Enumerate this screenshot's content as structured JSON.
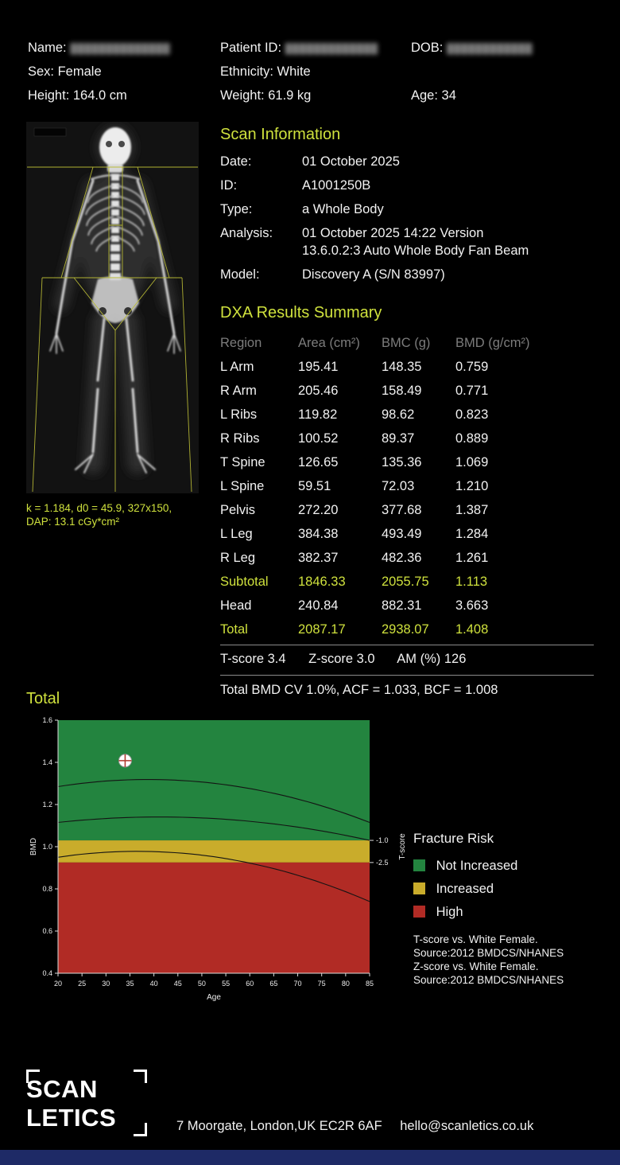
{
  "accent_color": "#cfe13d",
  "patient": {
    "name_label": "Name:",
    "name_value": "██████████████",
    "id_label": "Patient ID:",
    "id_value": "█████████████",
    "dob_label": "DOB:",
    "dob_value": "████████████",
    "sex": "Sex: Female",
    "ethnicity": "Ethnicity: White",
    "height": "Height: 164.0 cm",
    "weight": "Weight: 61.9 kg",
    "age": "Age: 34"
  },
  "scan_image": {
    "caption_line1": "k = 1.184, d0 = 45.9, 327x150,",
    "caption_line2": "DAP: 13.1 cGy*cm²"
  },
  "scan_info": {
    "heading": "Scan Information",
    "rows": [
      {
        "label": "Date:",
        "value": "01 October 2025"
      },
      {
        "label": "ID:",
        "value": "A1001250B"
      },
      {
        "label": "Type:",
        "value": "a Whole Body"
      },
      {
        "label": "Analysis:",
        "value": "01 October 2025 14:22 Version\n13.6.0.2:3 Auto Whole Body Fan Beam"
      },
      {
        "label": "Model:",
        "value": "Discovery A (S/N 83997)"
      }
    ]
  },
  "results": {
    "heading": "DXA Results Summary",
    "columns": {
      "region": "Region",
      "area": "Area (cm²)",
      "bmc": "BMC (g)",
      "bmd": "BMD (g/cm²)"
    },
    "rows": [
      {
        "region": "L Arm",
        "area": "195.41",
        "bmc": "148.35",
        "bmd": "0.759",
        "highlight": false
      },
      {
        "region": "R Arm",
        "area": "205.46",
        "bmc": "158.49",
        "bmd": "0.771",
        "highlight": false
      },
      {
        "region": "L Ribs",
        "area": "119.82",
        "bmc": "98.62",
        "bmd": "0.823",
        "highlight": false
      },
      {
        "region": "R Ribs",
        "area": "100.52",
        "bmc": "89.37",
        "bmd": "0.889",
        "highlight": false
      },
      {
        "region": "T Spine",
        "area": "126.65",
        "bmc": "135.36",
        "bmd": "1.069",
        "highlight": false
      },
      {
        "region": "L Spine",
        "area": "59.51",
        "bmc": "72.03",
        "bmd": "1.210",
        "highlight": false
      },
      {
        "region": "Pelvis",
        "area": "272.20",
        "bmc": "377.68",
        "bmd": " 1.387",
        "highlight": false
      },
      {
        "region": "L Leg",
        "area": "384.38",
        "bmc": "493.49",
        "bmd": "1.284",
        "highlight": false
      },
      {
        "region": "R Leg",
        "area": "382.37",
        "bmc": "482.36",
        "bmd": "1.261",
        "highlight": false
      },
      {
        "region": "Subtotal",
        "area": "1846.33",
        "bmc": "2055.75",
        "bmd": "1.113",
        "highlight": true
      },
      {
        "region": "Head",
        "area": "240.84",
        "bmc": "882.31",
        "bmd": "3.663",
        "highlight": false
      },
      {
        "region": "Total",
        "area": "2087.17",
        "bmc": "2938.07",
        "bmd": "1.408",
        "highlight": true
      }
    ],
    "score_parts": [
      "T-score 3.4",
      "Z-score 3.0",
      "AM (%) 126"
    ],
    "cv_line": "Total BMD CV 1.0%, ACF = 1.033, BCF = 1.008"
  },
  "chart_section": {
    "heading": "Total"
  },
  "chart_data": {
    "type": "scatter",
    "title": "Total",
    "xlabel": "Age",
    "ylabel": "BMD",
    "y2label": "T-score",
    "xlim": [
      20,
      85
    ],
    "ylim": [
      0.4,
      1.6
    ],
    "x_ticks": [
      "20",
      "25",
      "30",
      "35",
      "40",
      "45",
      "50",
      "55",
      "60",
      "65",
      "70",
      "75",
      "80",
      "85"
    ],
    "y_ticks": [
      "1.6",
      "1.4",
      "1.2",
      "1.0",
      "0.8",
      "0.6",
      "0.4"
    ],
    "t_marks": [
      {
        "label": "-1.0",
        "bmd": 1.03
      },
      {
        "label": "-2.5",
        "bmd": 0.925
      }
    ],
    "zones": [
      {
        "name": "Not Increased",
        "color": "#23843f",
        "from": 1.03,
        "to": 1.6
      },
      {
        "name": "Increased",
        "color": "#c9ac2b",
        "from": 0.925,
        "to": 1.03
      },
      {
        "name": "High",
        "color": "#b12b25",
        "from": 0.4,
        "to": 0.925
      }
    ],
    "reference_curves": [
      {
        "points": [
          [
            20,
            1.285
          ],
          [
            45,
            1.315
          ],
          [
            85,
            1.115
          ]
        ]
      },
      {
        "points": [
          [
            20,
            1.115
          ],
          [
            45,
            1.14
          ],
          [
            85,
            1.03
          ]
        ]
      },
      {
        "points": [
          [
            20,
            0.95
          ],
          [
            42,
            0.975
          ],
          [
            85,
            0.74
          ]
        ]
      }
    ],
    "patient_point": {
      "age": 34,
      "bmd": 1.408
    },
    "grid": false,
    "legend_position": "right"
  },
  "legend": {
    "title": "Fracture Risk",
    "entries": [
      {
        "label": "Not Increased",
        "color": "#23843f"
      },
      {
        "label": "Increased",
        "color": "#c9ac2b"
      },
      {
        "label": "High",
        "color": "#b12b25"
      }
    ],
    "source_lines": [
      "T-score vs. White Female.",
      "Source:2012 BMDCS/NHANES",
      "Z-score vs. White Female.",
      "Source:2012 BMDCS/NHANES"
    ]
  },
  "footer": {
    "logo_line1": "SCAN",
    "logo_line2": "LETICS",
    "address": "7 Moorgate, London,UK EC2R 6AF",
    "email": "hello@scanletics.co.uk"
  }
}
